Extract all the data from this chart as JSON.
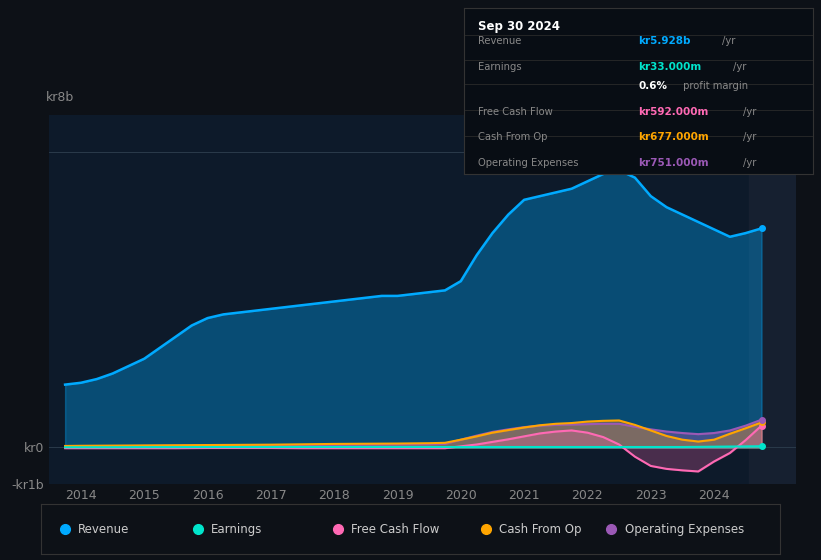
{
  "background_color": "#0d1117",
  "plot_bg_color": "#0d1a2a",
  "title_box_date": "Sep 30 2024",
  "title_box_rows": [
    {
      "label": "Revenue",
      "value": "kr5.928b",
      "unit": "/yr",
      "value_color": "#00aaff"
    },
    {
      "label": "Earnings",
      "value": "kr33.000m",
      "unit": "/yr",
      "value_color": "#00e5cc"
    },
    {
      "label": "",
      "value": "0.6%",
      "unit": " profit margin",
      "value_color": "#ffffff"
    },
    {
      "label": "Free Cash Flow",
      "value": "kr592.000m",
      "unit": "/yr",
      "value_color": "#ff69b4"
    },
    {
      "label": "Cash From Op",
      "value": "kr677.000m",
      "unit": "/yr",
      "value_color": "#ffa500"
    },
    {
      "label": "Operating Expenses",
      "value": "kr751.000m",
      "unit": "/yr",
      "value_color": "#9b59b6"
    }
  ],
  "ylim": [
    -1000000000.0,
    9000000000.0
  ],
  "ytick_vals": [
    -1000000000.0,
    0.0,
    8000000000.0
  ],
  "ytick_labels": [
    "-kr1b",
    "kr0",
    "kr8b"
  ],
  "xlim": [
    2013.5,
    2025.3
  ],
  "xticks": [
    2014,
    2015,
    2016,
    2017,
    2018,
    2019,
    2020,
    2021,
    2022,
    2023,
    2024
  ],
  "grid_color": "#2a3a4a",
  "legend_items": [
    {
      "label": "Revenue",
      "color": "#00aaff"
    },
    {
      "label": "Earnings",
      "color": "#00e5cc"
    },
    {
      "label": "Free Cash Flow",
      "color": "#ff69b4"
    },
    {
      "label": "Cash From Op",
      "color": "#ffa500"
    },
    {
      "label": "Operating Expenses",
      "color": "#9b59b6"
    }
  ],
  "revenue_x": [
    2013.75,
    2014.0,
    2014.25,
    2014.5,
    2014.75,
    2015.0,
    2015.25,
    2015.5,
    2015.75,
    2016.0,
    2016.25,
    2016.5,
    2016.75,
    2017.0,
    2017.25,
    2017.5,
    2017.75,
    2018.0,
    2018.25,
    2018.5,
    2018.75,
    2019.0,
    2019.25,
    2019.5,
    2019.75,
    2020.0,
    2020.25,
    2020.5,
    2020.75,
    2021.0,
    2021.25,
    2021.5,
    2021.75,
    2022.0,
    2022.25,
    2022.5,
    2022.75,
    2023.0,
    2023.25,
    2023.5,
    2023.75,
    2024.0,
    2024.25,
    2024.5,
    2024.75
  ],
  "revenue_y": [
    1700000000.0,
    1750000000.0,
    1850000000.0,
    2000000000.0,
    2200000000.0,
    2400000000.0,
    2700000000.0,
    3000000000.0,
    3300000000.0,
    3500000000.0,
    3600000000.0,
    3650000000.0,
    3700000000.0,
    3750000000.0,
    3800000000.0,
    3850000000.0,
    3900000000.0,
    3950000000.0,
    4000000000.0,
    4050000000.0,
    4100000000.0,
    4100000000.0,
    4150000000.0,
    4200000000.0,
    4250000000.0,
    4500000000.0,
    5200000000.0,
    5800000000.0,
    6300000000.0,
    6700000000.0,
    6800000000.0,
    6900000000.0,
    7000000000.0,
    7200000000.0,
    7400000000.0,
    7500000000.0,
    7300000000.0,
    6800000000.0,
    6500000000.0,
    6300000000.0,
    6100000000.0,
    5900000000.0,
    5700000000.0,
    5800000000.0,
    5928000000.0
  ],
  "revenue_color": "#00aaff",
  "earnings_x": [
    2013.75,
    2014.0,
    2014.5,
    2015.0,
    2015.5,
    2016.0,
    2016.5,
    2017.0,
    2017.5,
    2018.0,
    2018.5,
    2019.0,
    2019.5,
    2020.0,
    2020.5,
    2021.0,
    2021.5,
    2022.0,
    2022.5,
    2023.0,
    2023.5,
    2024.0,
    2024.75
  ],
  "earnings_y": [
    5000000.0,
    5000000.0,
    5000000.0,
    8000000.0,
    8000000.0,
    10000000.0,
    10000000.0,
    10000000.0,
    12000000.0,
    12000000.0,
    12000000.0,
    12000000.0,
    12000000.0,
    12000000.0,
    12000000.0,
    12000000.0,
    12000000.0,
    12000000.0,
    12000000.0,
    12000000.0,
    12000000.0,
    20000000.0,
    33000000.0
  ],
  "earnings_color": "#00e5cc",
  "fcf_x": [
    2013.75,
    2014.0,
    2014.5,
    2015.0,
    2015.5,
    2016.0,
    2016.5,
    2017.0,
    2017.5,
    2018.0,
    2018.5,
    2019.0,
    2019.5,
    2019.75,
    2020.0,
    2020.25,
    2020.5,
    2020.75,
    2021.0,
    2021.25,
    2021.5,
    2021.75,
    2022.0,
    2022.25,
    2022.5,
    2022.75,
    2023.0,
    2023.25,
    2023.5,
    2023.75,
    2024.0,
    2024.25,
    2024.5,
    2024.75
  ],
  "fcf_y": [
    -20000000.0,
    -20000000.0,
    -20000000.0,
    -20000000.0,
    -20000000.0,
    -15000000.0,
    -15000000.0,
    -15000000.0,
    -20000000.0,
    -20000000.0,
    -20000000.0,
    -20000000.0,
    -20000000.0,
    -20000000.0,
    30000000.0,
    80000000.0,
    150000000.0,
    220000000.0,
    300000000.0,
    380000000.0,
    430000000.0,
    460000000.0,
    400000000.0,
    280000000.0,
    80000000.0,
    -250000000.0,
    -500000000.0,
    -580000000.0,
    -620000000.0,
    -650000000.0,
    -380000000.0,
    -150000000.0,
    200000000.0,
    592000000.0
  ],
  "fcf_color": "#ff69b4",
  "cfo_x": [
    2013.75,
    2014.0,
    2014.5,
    2015.0,
    2015.5,
    2016.0,
    2016.5,
    2017.0,
    2017.5,
    2018.0,
    2018.5,
    2019.0,
    2019.5,
    2019.75,
    2020.0,
    2020.25,
    2020.5,
    2020.75,
    2021.0,
    2021.25,
    2021.5,
    2021.75,
    2022.0,
    2022.25,
    2022.5,
    2022.75,
    2023.0,
    2023.25,
    2023.5,
    2023.75,
    2024.0,
    2024.25,
    2024.5,
    2024.75
  ],
  "cfo_y": [
    40000000.0,
    45000000.0,
    50000000.0,
    55000000.0,
    60000000.0,
    65000000.0,
    70000000.0,
    75000000.0,
    85000000.0,
    95000000.0,
    100000000.0,
    105000000.0,
    115000000.0,
    125000000.0,
    210000000.0,
    300000000.0,
    400000000.0,
    470000000.0,
    540000000.0,
    600000000.0,
    640000000.0,
    660000000.0,
    700000000.0,
    720000000.0,
    730000000.0,
    610000000.0,
    460000000.0,
    310000000.0,
    210000000.0,
    160000000.0,
    210000000.0,
    370000000.0,
    520000000.0,
    677000000.0
  ],
  "cfo_color": "#ffa500",
  "opex_x": [
    2013.75,
    2014.0,
    2014.5,
    2015.0,
    2015.5,
    2016.0,
    2016.5,
    2017.0,
    2017.5,
    2018.0,
    2018.5,
    2019.0,
    2019.5,
    2019.75,
    2020.0,
    2020.25,
    2020.5,
    2020.75,
    2021.0,
    2021.25,
    2021.5,
    2021.75,
    2022.0,
    2022.25,
    2022.5,
    2022.75,
    2023.0,
    2023.25,
    2023.5,
    2023.75,
    2024.0,
    2024.25,
    2024.5,
    2024.75
  ],
  "opex_y": [
    25000000.0,
    30000000.0,
    35000000.0,
    40000000.0,
    45000000.0,
    50000000.0,
    55000000.0,
    60000000.0,
    65000000.0,
    70000000.0,
    75000000.0,
    80000000.0,
    85000000.0,
    95000000.0,
    210000000.0,
    320000000.0,
    420000000.0,
    490000000.0,
    550000000.0,
    590000000.0,
    610000000.0,
    620000000.0,
    630000000.0,
    640000000.0,
    640000000.0,
    560000000.0,
    490000000.0,
    430000000.0,
    390000000.0,
    360000000.0,
    390000000.0,
    460000000.0,
    590000000.0,
    751000000.0
  ],
  "opex_color": "#9b59b6"
}
